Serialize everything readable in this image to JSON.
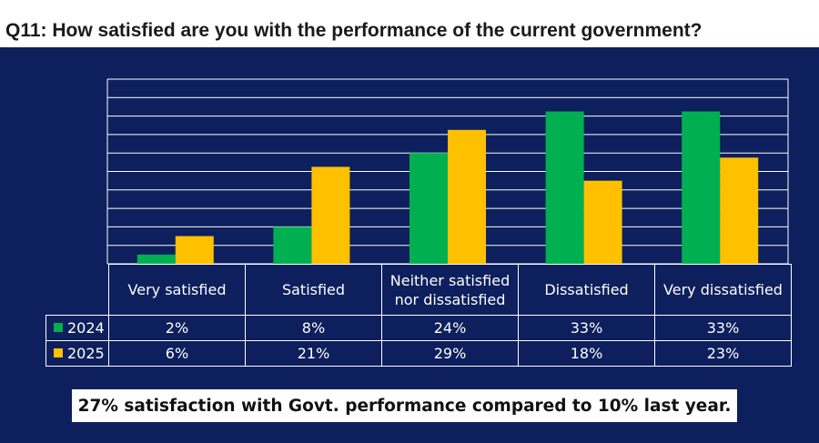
{
  "title": "Q11: How satisfied are you with the performance of the current government?",
  "summary": "27% satisfaction with Govt. performance compared to 10% last year.",
  "chart_data": {
    "type": "bar",
    "categories": [
      "Very satisfied",
      "Satisfied",
      "Neither satisfied nor dissatisfied",
      "Dissatisfied",
      "Very dissatisfied"
    ],
    "series": [
      {
        "name": "2024",
        "values": [
          2,
          8,
          24,
          33,
          33
        ],
        "labels": [
          "2%",
          "8%",
          "24%",
          "33%",
          "33%"
        ],
        "color": "#00b050"
      },
      {
        "name": "2025",
        "values": [
          6,
          21,
          29,
          18,
          23
        ],
        "labels": [
          "6%",
          "21%",
          "29%",
          "18%",
          "23%"
        ],
        "color": "#ffc000"
      }
    ],
    "ylim": [
      0,
      40
    ],
    "grid": true,
    "legend": "data table"
  },
  "table": {
    "headers": [
      "Very satisfied",
      "Satisfied",
      "Neither satisfied nor dissatisfied",
      "Dissatisfied",
      "Very dissatisfied"
    ]
  }
}
